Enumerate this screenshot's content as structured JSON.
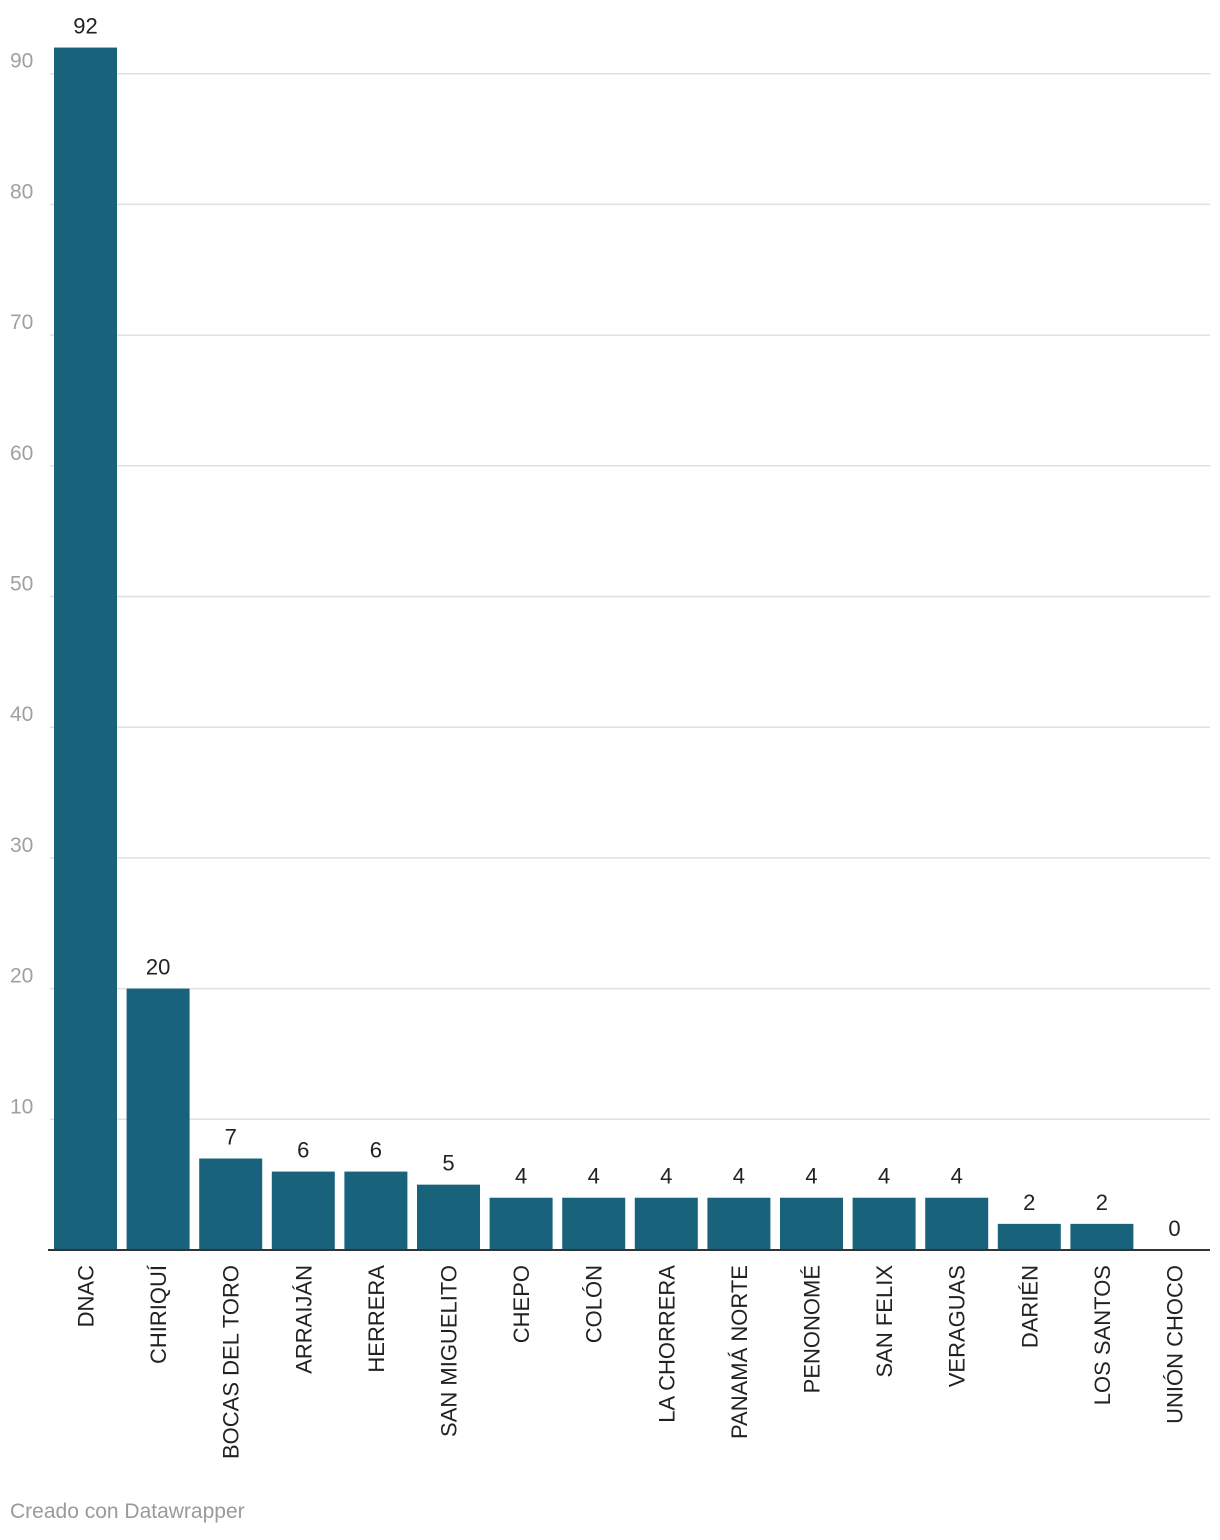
{
  "chart_data": {
    "type": "bar",
    "categories": [
      "DNAC",
      "CHIRIQUÍ",
      "BOCAS DEL TORO",
      "ARRAIJÁN",
      "HERRERA",
      "SAN MIGUELITO",
      "CHEPO",
      "COLÓN",
      "LA CHORRERA",
      "PANAMÁ NORTE",
      "PENONOMÉ",
      "SAN FELIX",
      "VERAGUAS",
      "DARIÉN",
      "LOS SANTOS",
      "UNIÓN CHOCO"
    ],
    "values": [
      92,
      20,
      7,
      6,
      6,
      5,
      4,
      4,
      4,
      4,
      4,
      4,
      4,
      2,
      2,
      0
    ],
    "title": "",
    "xlabel": "",
    "ylabel": "",
    "ylim": [
      0,
      90
    ],
    "yticks": [
      10,
      20,
      30,
      40,
      50,
      60,
      70,
      80,
      90
    ],
    "grid": true,
    "bar_color": "#18627c",
    "grid_color": "#e0e0e0",
    "tick_label_color": "#a0a0a0",
    "value_label_color": "#222222"
  },
  "footer": {
    "credit": "Creado con Datawrapper"
  }
}
